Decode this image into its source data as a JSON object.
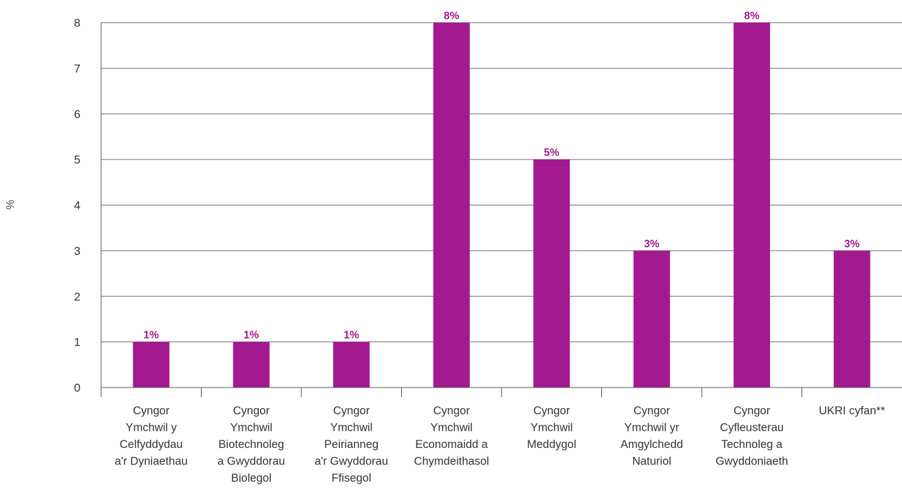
{
  "chart_data": {
    "type": "bar",
    "title": "",
    "xlabel": "",
    "ylabel": "%",
    "ylim": [
      0,
      8
    ],
    "yticks": [
      0,
      1,
      2,
      3,
      4,
      5,
      6,
      7,
      8
    ],
    "grid": true,
    "legend": "none",
    "bar_color": "#a3198f",
    "categories": [
      [
        "Cyngor",
        "Ymchwil y",
        "Celfyddydau",
        "a'r Dyniaethau"
      ],
      [
        "Cyngor",
        "Ymchwil",
        "Biotechnoleg",
        "a Gwyddorau",
        "Biolegol"
      ],
      [
        "Cyngor",
        "Ymchwil",
        "Peirianneg",
        "a'r Gwyddorau",
        "Ffisegol"
      ],
      [
        "Cyngor",
        "Ymchwil",
        "Economaidd a",
        "Chymdeithasol"
      ],
      [
        "Cyngor",
        "Ymchwil",
        "Meddygol"
      ],
      [
        "Cyngor",
        "Ymchwil yr",
        "Amgylchedd",
        "Naturiol"
      ],
      [
        "Cyngor",
        "Cyfleusterau",
        "Technoleg a",
        "Gwyddoniaeth"
      ],
      [
        "UKRI cyfan**"
      ]
    ],
    "values": [
      1,
      1,
      1,
      8,
      5,
      3,
      8,
      3
    ],
    "data_labels": [
      "1%",
      "1%",
      "1%",
      "8%",
      "5%",
      "3%",
      "8%",
      "3%"
    ]
  }
}
